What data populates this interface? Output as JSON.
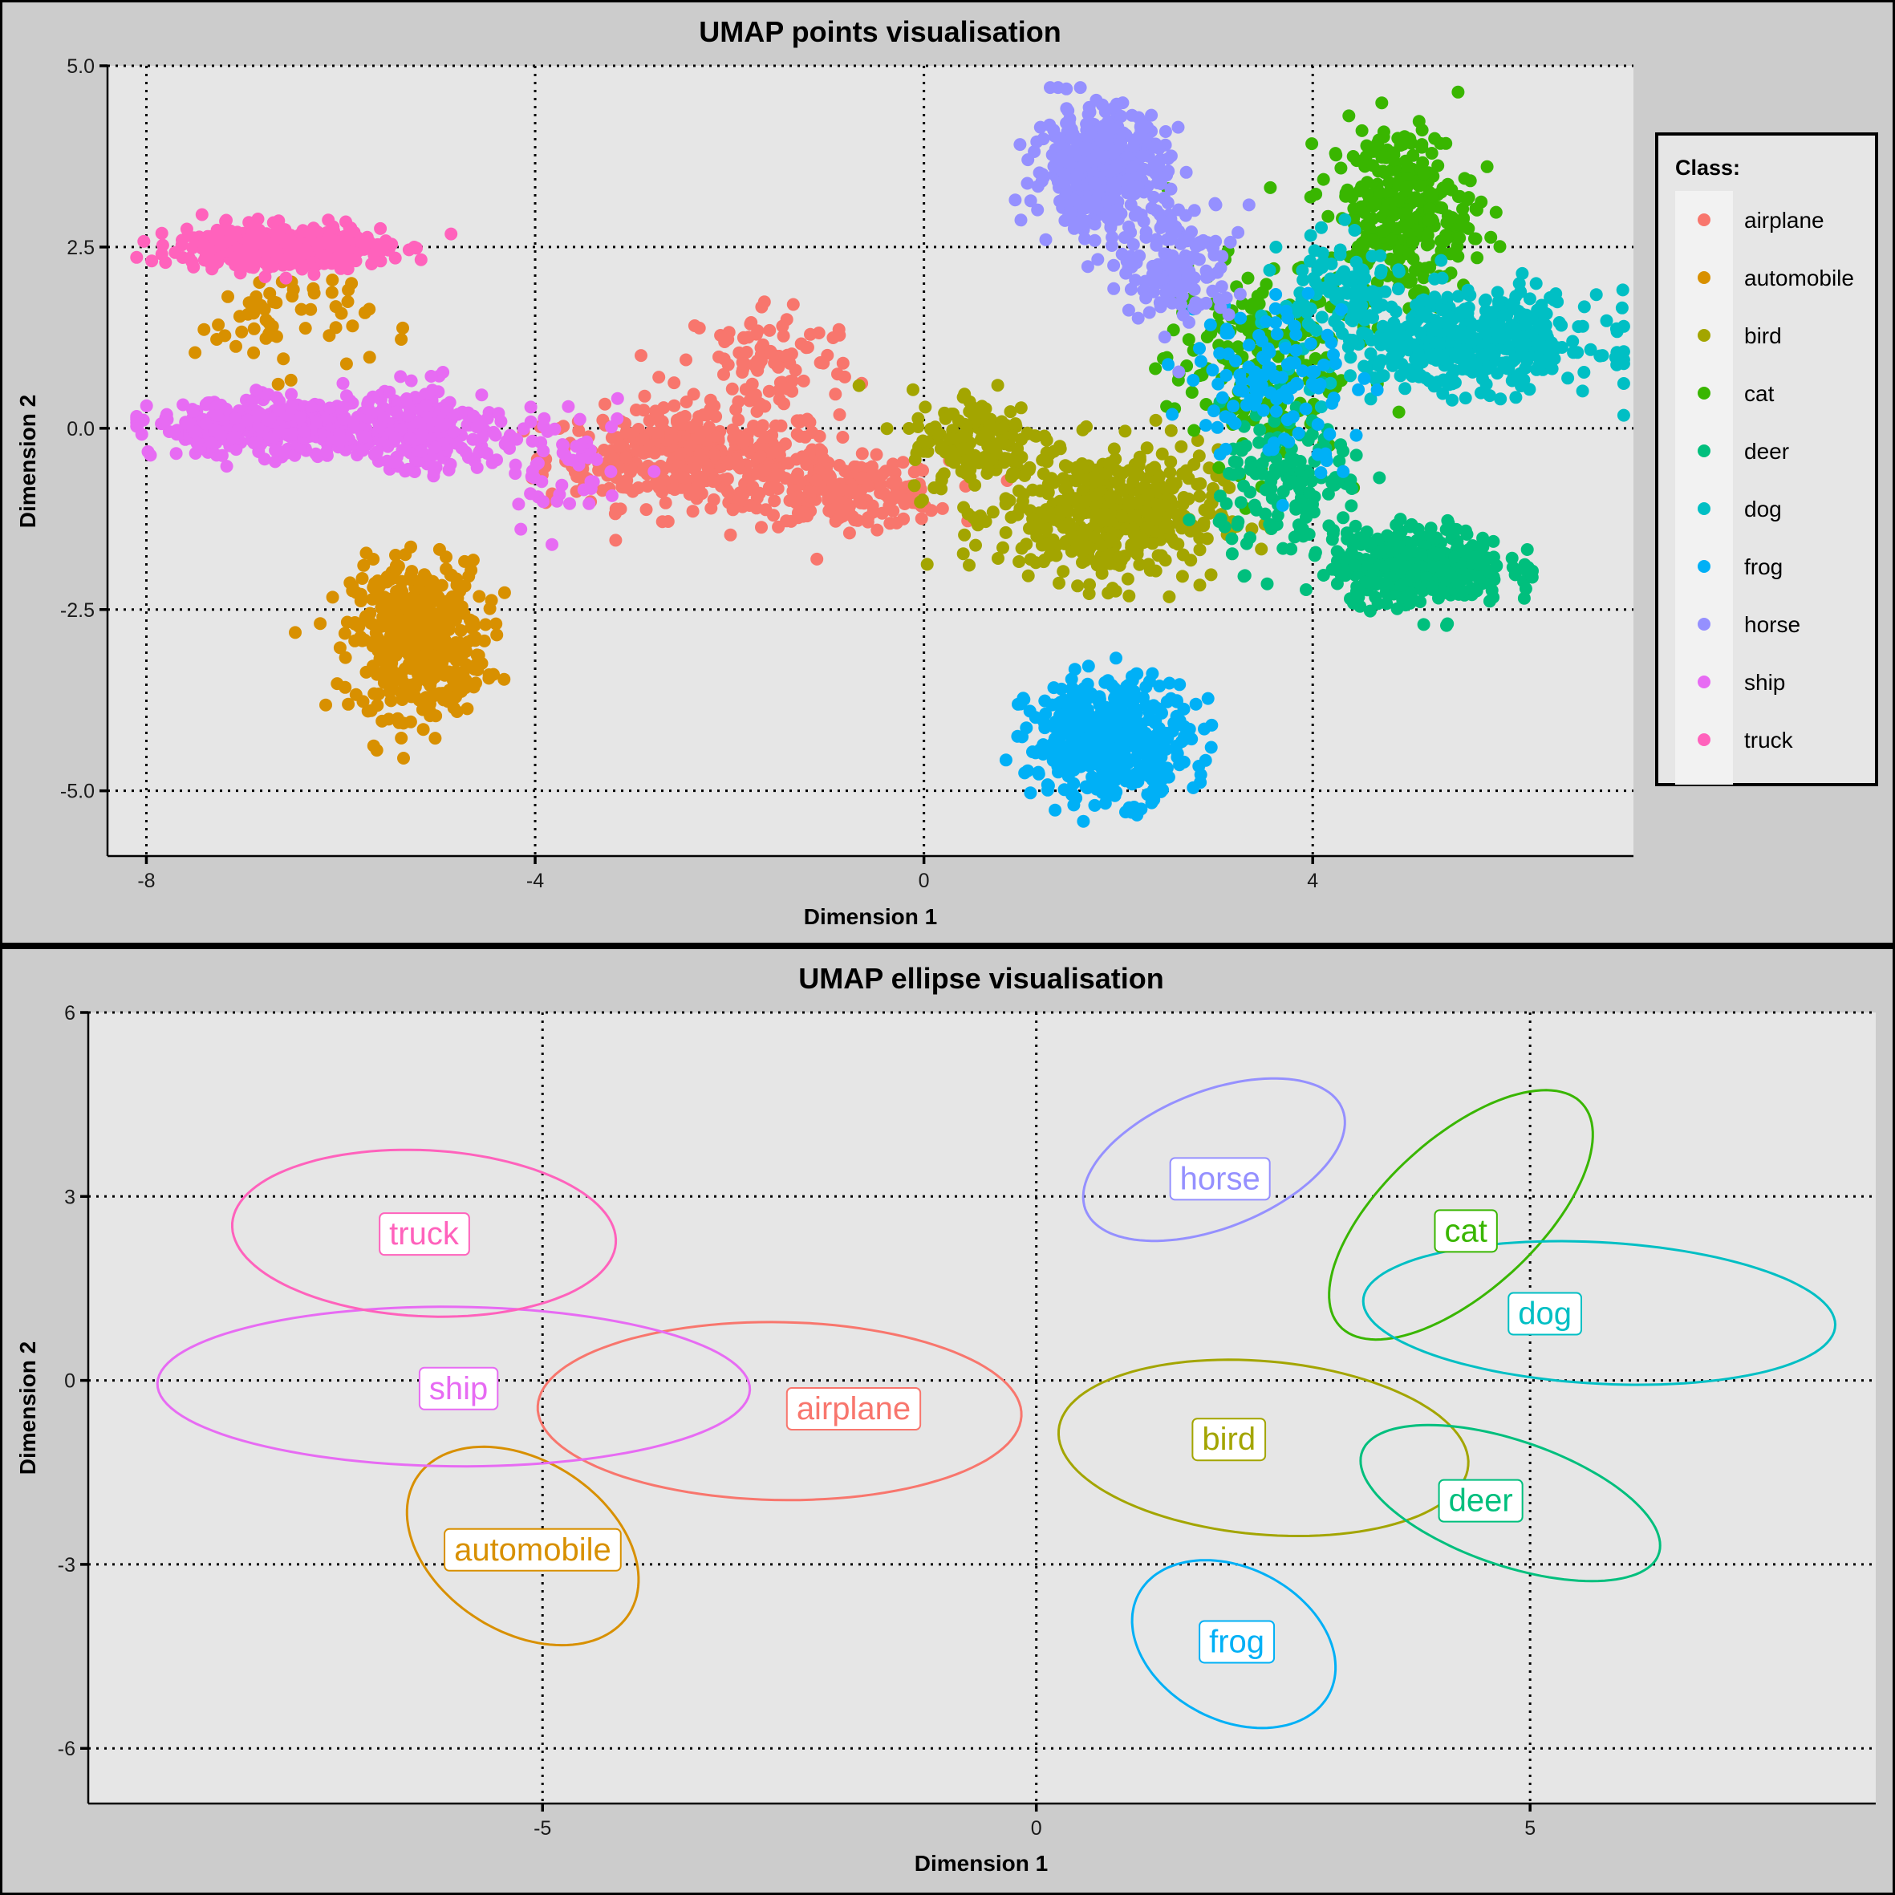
{
  "figure": {
    "top_title": "UMAP points visualisation",
    "bottom_title": "UMAP ellipse visualisation"
  },
  "chart_data": [
    {
      "type": "scatter",
      "title": "UMAP points visualisation",
      "xlabel": "Dimension 1",
      "ylabel": "Dimension 2",
      "xlim": [
        -8.4,
        7.3
      ],
      "ylim": [
        -5.9,
        5.0
      ],
      "xticks": [
        -8,
        -4,
        0,
        4
      ],
      "xtick_labels": [
        "-8",
        "-4",
        "0",
        "4"
      ],
      "yticks": [
        -5,
        -2.5,
        0,
        2.5,
        5
      ],
      "ytick_labels": [
        "-5.0",
        "-2.5",
        "0.0",
        "2.5",
        "5.0"
      ],
      "grid": true,
      "legend": {
        "title": "Class:",
        "placement": "right"
      },
      "series": [
        {
          "name": "airplane",
          "color": "#F8766D",
          "clusters": [
            {
              "cx": -2.4,
              "cy": -0.4,
              "sx": 1.0,
              "sy": 0.45,
              "n": 400
            },
            {
              "cx": -0.8,
              "cy": -0.9,
              "sx": 0.7,
              "sy": 0.3,
              "n": 200
            },
            {
              "cx": -1.6,
              "cy": 0.9,
              "sx": 0.6,
              "sy": 0.6,
              "n": 100
            }
          ]
        },
        {
          "name": "automobile",
          "color": "#D89000",
          "clusters": [
            {
              "cx": -5.2,
              "cy": -2.9,
              "sx": 0.45,
              "sy": 0.7,
              "n": 450
            },
            {
              "cx": -6.6,
              "cy": 1.5,
              "sx": 0.6,
              "sy": 0.5,
              "n": 60
            }
          ]
        },
        {
          "name": "bird",
          "color": "#A3A500",
          "clusters": [
            {
              "cx": 1.9,
              "cy": -1.2,
              "sx": 0.75,
              "sy": 0.6,
              "n": 450
            },
            {
              "cx": 0.6,
              "cy": -0.2,
              "sx": 0.5,
              "sy": 0.5,
              "n": 150
            }
          ]
        },
        {
          "name": "cat",
          "color": "#39B600",
          "clusters": [
            {
              "cx": 4.9,
              "cy": 3.0,
              "sx": 0.5,
              "sy": 0.8,
              "n": 300
            },
            {
              "cx": 3.4,
              "cy": 0.9,
              "sx": 0.6,
              "sy": 0.9,
              "n": 200
            }
          ]
        },
        {
          "name": "deer",
          "color": "#00BF7D",
          "clusters": [
            {
              "cx": 5.1,
              "cy": -1.9,
              "sx": 0.6,
              "sy": 0.35,
              "n": 400
            },
            {
              "cx": 3.8,
              "cy": -0.8,
              "sx": 0.5,
              "sy": 0.7,
              "n": 150
            }
          ]
        },
        {
          "name": "dog",
          "color": "#00BFC4",
          "clusters": [
            {
              "cx": 5.6,
              "cy": 1.2,
              "sx": 0.9,
              "sy": 0.45,
              "n": 450
            },
            {
              "cx": 4.3,
              "cy": 1.9,
              "sx": 0.4,
              "sy": 0.5,
              "n": 100
            }
          ]
        },
        {
          "name": "frog",
          "color": "#00B0F6",
          "clusters": [
            {
              "cx": 1.9,
              "cy": -4.3,
              "sx": 0.55,
              "sy": 0.55,
              "n": 450
            },
            {
              "cx": 3.6,
              "cy": 0.7,
              "sx": 0.6,
              "sy": 0.8,
              "n": 120
            }
          ]
        },
        {
          "name": "horse",
          "color": "#9590FF",
          "clusters": [
            {
              "cx": 1.8,
              "cy": 3.6,
              "sx": 0.45,
              "sy": 0.55,
              "n": 400
            },
            {
              "cx": 2.6,
              "cy": 2.3,
              "sx": 0.4,
              "sy": 0.6,
              "n": 150
            }
          ]
        },
        {
          "name": "ship",
          "color": "#E76BF3",
          "clusters": [
            {
              "cx": -6.7,
              "cy": 0.0,
              "sx": 0.8,
              "sy": 0.25,
              "n": 400
            },
            {
              "cx": -5.1,
              "cy": 0.0,
              "sx": 0.5,
              "sy": 0.4,
              "n": 200
            },
            {
              "cx": -3.7,
              "cy": -0.5,
              "sx": 0.5,
              "sy": 0.5,
              "n": 60
            }
          ]
        },
        {
          "name": "truck",
          "color": "#FF62BC",
          "clusters": [
            {
              "cx": -6.6,
              "cy": 2.5,
              "sx": 0.7,
              "sy": 0.2,
              "n": 450
            }
          ]
        }
      ]
    },
    {
      "type": "scatter",
      "title": "UMAP ellipse visualisation",
      "xlabel": "Dimension 1",
      "ylabel": "Dimension 2",
      "xlim": [
        -9.6,
        8.5
      ],
      "ylim": [
        -6.9,
        6.0
      ],
      "xticks": [
        -5,
        0,
        5
      ],
      "xtick_labels": [
        "-5",
        "0",
        "5"
      ],
      "yticks": [
        -6,
        -3,
        0,
        3,
        6
      ],
      "ytick_labels": [
        "-6",
        "-3",
        "0",
        "3",
        "6"
      ],
      "grid": true,
      "ellipses": [
        {
          "name": "airplane",
          "color": "#F8766D",
          "cx": -2.6,
          "cy": -0.5,
          "rx": 4.9,
          "ry": 2.9,
          "angle": -2,
          "label_x": -1.85,
          "label_y": -0.45
        },
        {
          "name": "automobile",
          "color": "#D89000",
          "cx": -5.2,
          "cy": -2.7,
          "rx": 3.4,
          "ry": 2.1,
          "angle": -67,
          "label_x": -5.1,
          "label_y": -2.75
        },
        {
          "name": "bird",
          "color": "#A3A500",
          "cx": 2.3,
          "cy": -1.1,
          "rx": 4.2,
          "ry": 2.8,
          "angle": -12,
          "label_x": 1.95,
          "label_y": -0.95
        },
        {
          "name": "cat",
          "color": "#39B600",
          "cx": 4.3,
          "cy": 2.7,
          "rx": 4.5,
          "ry": 1.85,
          "angle": 62,
          "label_x": 4.35,
          "label_y": 2.45
        },
        {
          "name": "deer",
          "color": "#00BF7D",
          "cx": 4.8,
          "cy": -2.0,
          "rx": 3.5,
          "ry": 1.85,
          "angle": -36,
          "label_x": 4.5,
          "label_y": -1.95
        },
        {
          "name": "dog",
          "color": "#00BFC4",
          "cx": 5.7,
          "cy": 1.1,
          "rx": 4.8,
          "ry": 2.3,
          "angle": -6,
          "label_x": 5.15,
          "label_y": 1.1
        },
        {
          "name": "frog",
          "color": "#00B0F6",
          "cx": 2.0,
          "cy": -4.3,
          "rx": 2.85,
          "ry": 1.9,
          "angle": -68,
          "label_x": 2.03,
          "label_y": -4.25
        },
        {
          "name": "horse",
          "color": "#9590FF",
          "cx": 1.8,
          "cy": 3.6,
          "rx": 3.2,
          "ry": 1.95,
          "angle": 45,
          "label_x": 1.86,
          "label_y": 3.3
        },
        {
          "name": "ship",
          "color": "#E76BF3",
          "cx": -5.9,
          "cy": -0.1,
          "rx": 6.0,
          "ry": 2.6,
          "angle": -1,
          "label_x": -5.85,
          "label_y": -0.12
        },
        {
          "name": "truck",
          "color": "#FF62BC",
          "cx": -6.2,
          "cy": 2.4,
          "rx": 3.9,
          "ry": 2.7,
          "angle": -7,
          "label_x": -6.2,
          "label_y": 2.4
        }
      ]
    }
  ]
}
